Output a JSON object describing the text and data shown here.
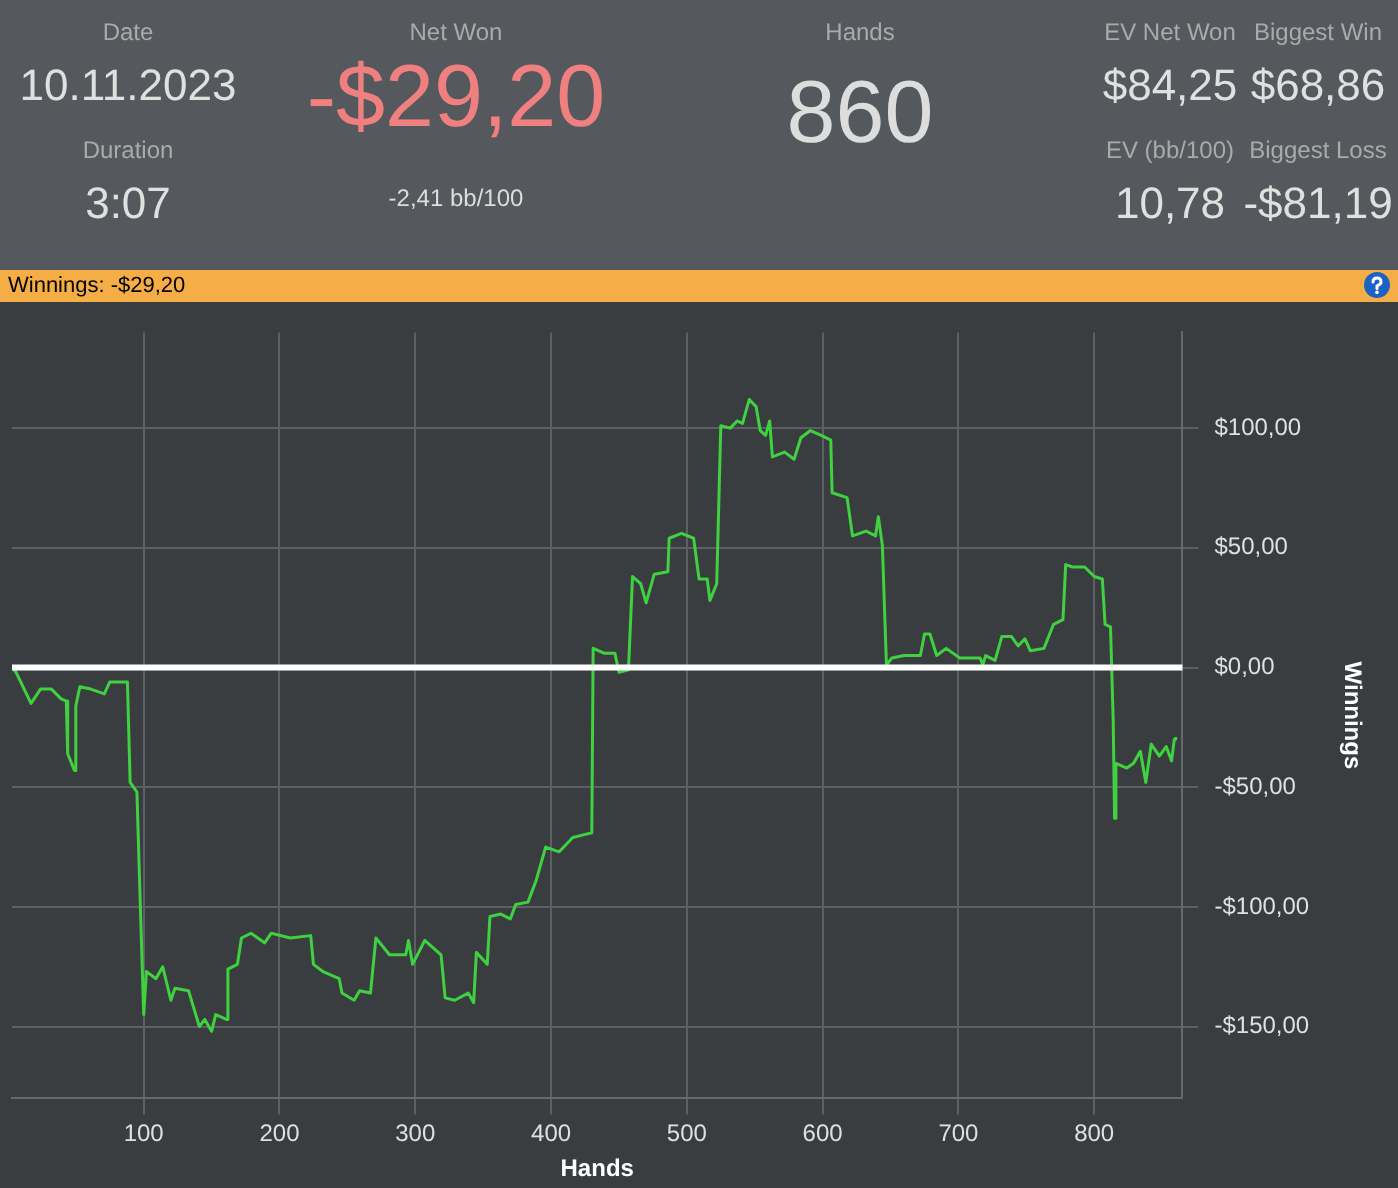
{
  "chart_data": {
    "type": "line",
    "title": "Winnings: -$29,20",
    "xlabel": "Hands",
    "ylabel": "Winnings",
    "annotations": [
      "Date",
      "10.11.2023",
      "Duration",
      "3:07",
      "Net Won",
      "-$29,20",
      "-2,41 bb/100",
      "Hands",
      "860",
      "EV Net Won",
      "$84,25",
      "Biggest Win",
      "$68,86",
      "EV (bb/100)",
      "10,78",
      "Biggest Loss",
      "-$81,19"
    ],
    "x": [
      3,
      6,
      17,
      24,
      32,
      39,
      43,
      44,
      49,
      50,
      53,
      61,
      71,
      75,
      88,
      90,
      95,
      97,
      100,
      102,
      109,
      114,
      120,
      123,
      133,
      141,
      145,
      150,
      153,
      161,
      162,
      169,
      172,
      179,
      189,
      194,
      208,
      223,
      225,
      232,
      244,
      246,
      255,
      259,
      267,
      271,
      281,
      293,
      295,
      298,
      307,
      319,
      322,
      329,
      339,
      343,
      345,
      353,
      355,
      363,
      370,
      374,
      383,
      389,
      396,
      406,
      416,
      423,
      430,
      431,
      439,
      447,
      450,
      457,
      460,
      466,
      470,
      476,
      486,
      487,
      496,
      505,
      509,
      515,
      517,
      522,
      525,
      532,
      537,
      541,
      546,
      551,
      554,
      558,
      561,
      563,
      572,
      579,
      584,
      591,
      599,
      606,
      607,
      618,
      622,
      632,
      639,
      641,
      644,
      647,
      651,
      660,
      672,
      675,
      679,
      684,
      691,
      701,
      716,
      718,
      720,
      727,
      732,
      739,
      744,
      749,
      753,
      763,
      770,
      777,
      779,
      784,
      793,
      800,
      806,
      808,
      812,
      814,
      815,
      816,
      824,
      829,
      834,
      838,
      842,
      848,
      853,
      857,
      859,
      860
    ],
    "series": [
      {
        "color": "#3fd13f",
        "values": [
          0,
          -2,
          -15,
          -9,
          -9,
          -13,
          -14,
          -36,
          -43,
          -16,
          -8,
          -9,
          -11,
          -6,
          -6,
          -48,
          -52,
          -90,
          -145,
          -127,
          -130,
          -125,
          -139,
          -134,
          -135,
          -150,
          -147,
          -152,
          -145,
          -147,
          -126,
          -124,
          -113,
          -111,
          -115,
          -111,
          -113,
          -112,
          -124,
          -127,
          -130,
          -136,
          -139,
          -135,
          -136,
          -113,
          -120,
          -120,
          -114,
          -124,
          -114,
          -120,
          -138,
          -139,
          -136,
          -140,
          -119,
          -124,
          -104,
          -103,
          -105,
          -99,
          -98,
          -89,
          -75,
          -77,
          -71,
          -70,
          -69,
          8,
          6,
          6,
          -2,
          -1,
          38,
          35,
          27,
          39,
          40,
          54,
          56,
          54,
          37,
          37,
          28,
          35,
          101,
          100,
          103,
          102,
          112,
          109,
          99,
          97,
          103,
          88,
          90,
          87,
          96,
          99,
          97,
          95,
          73,
          71,
          55,
          57,
          55,
          63,
          51,
          1,
          4,
          5,
          5,
          14,
          14,
          5,
          8,
          4,
          4,
          1,
          5,
          3,
          13,
          13,
          9,
          12,
          7,
          8,
          18,
          20,
          43,
          42,
          42,
          38,
          37,
          18,
          17,
          -22,
          -63,
          -40,
          -42,
          -40,
          -35,
          -48,
          -32,
          -37,
          -33,
          -39,
          -30,
          -29
        ]
      }
    ],
    "xlim": [
      3,
      865
    ],
    "xticks": [
      100,
      200,
      300,
      400,
      500,
      600,
      700,
      800
    ],
    "ylim": [
      -180,
      140
    ],
    "yticks": [
      {
        "value": -150,
        "label": "-$150,00"
      },
      {
        "value": -100,
        "label": "-$100,00"
      },
      {
        "value": -50,
        "label": "-$50,00"
      },
      {
        "value": 0,
        "label": "$0,00"
      },
      {
        "value": 50,
        "label": "$50,00"
      },
      {
        "value": 100,
        "label": "$100,00"
      }
    ],
    "ref_lines": [
      {
        "axis": "y",
        "value": 0,
        "color": "#ffffff"
      }
    ],
    "grid": true,
    "legend": false,
    "marker": "none",
    "line_style": "solid"
  }
}
